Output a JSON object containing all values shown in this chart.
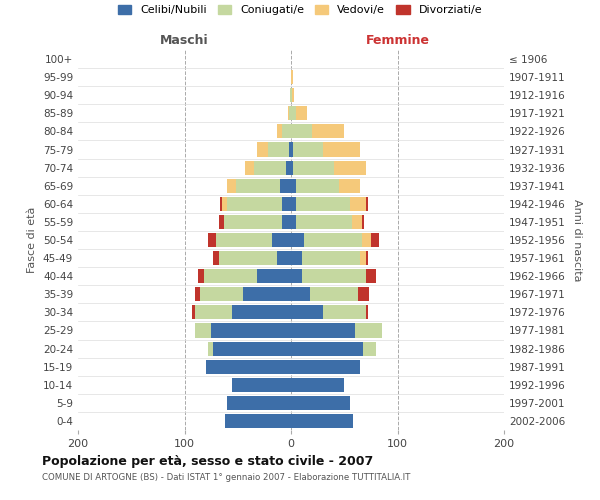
{
  "age_groups": [
    "0-4",
    "5-9",
    "10-14",
    "15-19",
    "20-24",
    "25-29",
    "30-34",
    "35-39",
    "40-44",
    "45-49",
    "50-54",
    "55-59",
    "60-64",
    "65-69",
    "70-74",
    "75-79",
    "80-84",
    "85-89",
    "90-94",
    "95-99",
    "100+"
  ],
  "birth_years": [
    "2002-2006",
    "1997-2001",
    "1992-1996",
    "1987-1991",
    "1982-1986",
    "1977-1981",
    "1972-1976",
    "1967-1971",
    "1962-1966",
    "1957-1961",
    "1952-1956",
    "1947-1951",
    "1942-1946",
    "1937-1941",
    "1932-1936",
    "1927-1931",
    "1922-1926",
    "1917-1921",
    "1912-1916",
    "1907-1911",
    "≤ 1906"
  ],
  "maschi": {
    "celibi": [
      62,
      60,
      55,
      80,
      73,
      75,
      55,
      45,
      32,
      13,
      18,
      8,
      8,
      10,
      5,
      2,
      0,
      0,
      0,
      0,
      0
    ],
    "coniugati": [
      0,
      0,
      0,
      0,
      5,
      15,
      35,
      40,
      50,
      55,
      52,
      55,
      52,
      42,
      30,
      20,
      8,
      2,
      1,
      0,
      0
    ],
    "vedovi": [
      0,
      0,
      0,
      0,
      0,
      0,
      0,
      0,
      0,
      0,
      0,
      0,
      5,
      8,
      8,
      10,
      5,
      1,
      0,
      0,
      0
    ],
    "divorziati": [
      0,
      0,
      0,
      0,
      0,
      0,
      3,
      5,
      5,
      5,
      8,
      5,
      2,
      0,
      0,
      0,
      0,
      0,
      0,
      0,
      0
    ]
  },
  "femmine": {
    "nubili": [
      58,
      55,
      50,
      65,
      68,
      60,
      30,
      18,
      10,
      10,
      12,
      5,
      5,
      5,
      2,
      2,
      0,
      0,
      0,
      0,
      0
    ],
    "coniugate": [
      0,
      0,
      0,
      0,
      12,
      25,
      40,
      45,
      60,
      55,
      55,
      52,
      50,
      40,
      38,
      28,
      20,
      5,
      1,
      0,
      0
    ],
    "vedove": [
      0,
      0,
      0,
      0,
      0,
      0,
      0,
      0,
      0,
      5,
      8,
      10,
      15,
      20,
      30,
      35,
      30,
      10,
      2,
      2,
      0
    ],
    "divorziate": [
      0,
      0,
      0,
      0,
      0,
      0,
      2,
      10,
      10,
      2,
      8,
      2,
      2,
      0,
      0,
      0,
      0,
      0,
      0,
      0,
      0
    ]
  },
  "colors": {
    "celibi": "#3d6ea8",
    "coniugati": "#c5d8a0",
    "vedovi": "#f5c97a",
    "divorziati": "#c0342c"
  },
  "legend_labels": [
    "Celibi/Nubili",
    "Coniugati/e",
    "Vedovi/e",
    "Divorziati/e"
  ],
  "legend_colors": [
    "#3d6ea8",
    "#c5d8a0",
    "#f5c97a",
    "#c0342c"
  ],
  "xlabel_maschi": "Maschi",
  "xlabel_femmine": "Femmine",
  "ylabel_left": "Fasce di età",
  "ylabel_right": "Anni di nascita",
  "title": "Popolazione per età, sesso e stato civile - 2007",
  "subtitle": "COMUNE DI ARTOGNE (BS) - Dati ISTAT 1° gennaio 2007 - Elaborazione TUTTITALIA.IT",
  "xlim": 200,
  "background_color": "#ffffff",
  "grid_color": "#cccccc"
}
